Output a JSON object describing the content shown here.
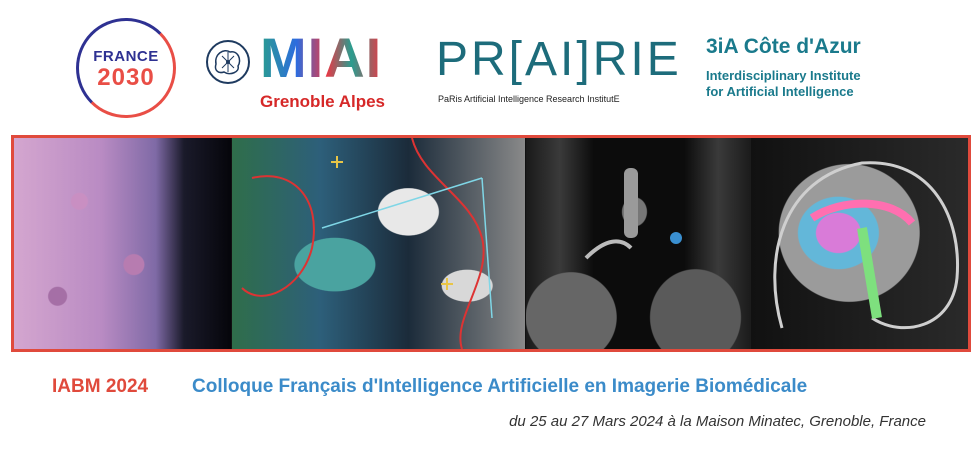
{
  "logos": {
    "france2030": {
      "line1": "FRANCE",
      "line2": "2030"
    },
    "miai": {
      "word": "MIAI",
      "sub": "Grenoble Alpes"
    },
    "prairie": {
      "word": "PR[AI]RIE",
      "sub": "PaRis Artificial Intelligence Research InstitutE"
    },
    "tria": {
      "head": "3iA Côte d'Azur",
      "line1": "Interdisciplinary Institute",
      "line2": "for Artificial Intelligence"
    }
  },
  "banner": {
    "panels": [
      "histology-image",
      "tissue-segmentation-image",
      "ct-scan-image",
      "brain-mri-image"
    ]
  },
  "conference": {
    "code": "IABM 2024",
    "title": "Colloque Français d'Intelligence Artificielle en Imagerie Biomédicale",
    "date": "du 25 au 27 Mars 2024 à la Maison Minatec, Grenoble, France"
  },
  "colors": {
    "accent_red": "#e04a3c",
    "title_blue": "#3b8bc9"
  }
}
